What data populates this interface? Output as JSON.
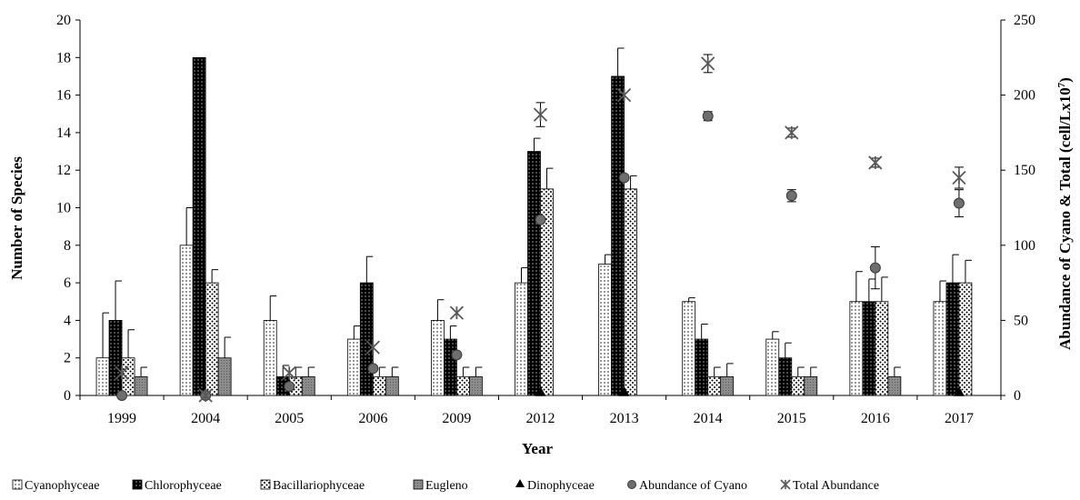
{
  "chart_data": {
    "type": "bar",
    "categories": [
      "1999",
      "2004",
      "2005",
      "2006",
      "2009",
      "2012",
      "2013",
      "2014",
      "2015",
      "2016",
      "2017"
    ],
    "xlabel": "Year",
    "ylabel": "Number of Species",
    "ylabel_right": "Abundance of Cyano & Total (cell/Lx10",
    "ylabel_right_sup": "7",
    "ylabel_right_end": ")",
    "ylim": [
      0,
      20
    ],
    "ylim_right": [
      0,
      250
    ],
    "yticks": [
      0,
      2,
      4,
      6,
      8,
      10,
      12,
      14,
      16,
      18,
      20
    ],
    "yticks_right": [
      0,
      50,
      100,
      150,
      200,
      250
    ],
    "series": [
      {
        "name": "Cyanophyceae",
        "kind": "bar",
        "pattern": "dots",
        "values": [
          2,
          8,
          4,
          3,
          4,
          6,
          7,
          5,
          3,
          5,
          5
        ],
        "errors": [
          2.4,
          2,
          1.3,
          0.7,
          1.1,
          0.8,
          0.5,
          0.2,
          0.4,
          1.6,
          1.1
        ]
      },
      {
        "name": "Chlorophyceae",
        "kind": "bar",
        "pattern": "dark",
        "values": [
          4,
          18,
          1,
          6,
          3,
          13,
          17,
          3,
          2,
          5,
          6
        ],
        "errors": [
          2.1,
          0,
          0.6,
          1.4,
          0.7,
          0.7,
          1.5,
          0.8,
          0.8,
          1.2,
          1.5
        ]
      },
      {
        "name": "Bacillariophyceae",
        "kind": "bar",
        "pattern": "dense",
        "values": [
          2,
          6,
          1,
          1,
          1,
          11,
          11,
          1,
          1,
          5,
          6
        ],
        "errors": [
          1.5,
          0.7,
          0.5,
          0.5,
          0.5,
          1.1,
          0.7,
          0.5,
          0.5,
          1.3,
          1.2
        ]
      },
      {
        "name": "Eugleno",
        "kind": "bar",
        "pattern": "grey",
        "values": [
          1,
          2,
          1,
          1,
          1,
          0,
          0,
          1,
          1,
          1,
          0
        ],
        "errors": [
          0.5,
          1.1,
          0.5,
          0.5,
          0.5,
          0,
          0,
          0.7,
          0.5,
          0.5,
          0
        ]
      },
      {
        "name": "Dinophyceae",
        "kind": "marker",
        "marker": "triangle",
        "values": [
          null,
          null,
          null,
          null,
          null,
          0,
          0,
          null,
          null,
          null,
          0
        ]
      },
      {
        "name": "Abundance of Cyano",
        "kind": "marker",
        "marker": "circle",
        "axis": "right",
        "values": [
          0,
          0,
          6,
          18,
          27,
          117,
          145,
          186,
          133,
          85,
          128
        ],
        "errors": [
          0,
          0,
          0,
          0,
          0,
          0,
          0,
          3,
          4,
          14,
          9
        ]
      },
      {
        "name": "Total Abundance",
        "kind": "marker",
        "marker": "asterisk",
        "axis": "right",
        "values": [
          15,
          0,
          15,
          32,
          55,
          187,
          200,
          221,
          175,
          155,
          145
        ],
        "errors": [
          0,
          0,
          0,
          0,
          0,
          8,
          0,
          6,
          3,
          3,
          7
        ]
      }
    ],
    "legend": {
      "position": "bottom"
    },
    "colors": {
      "dark": "#000000",
      "grey": "#7f7f7f",
      "marker": "#595959",
      "errorbar": "#000000"
    }
  }
}
